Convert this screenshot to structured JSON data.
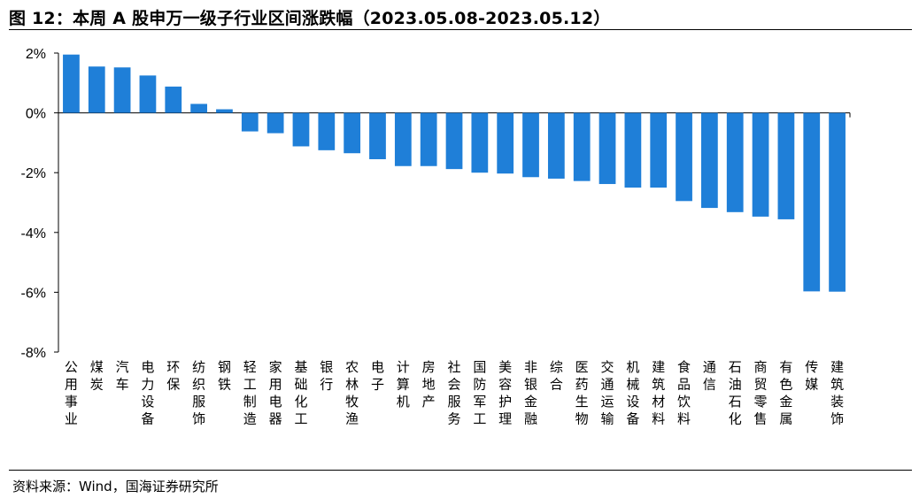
{
  "header": {
    "title": "图 12：本周 A 股申万一级子行业区间涨跌幅（2023.05.08-2023.05.12）"
  },
  "footer": {
    "source": "资料来源：Wind，国海证券研究所"
  },
  "colors": {
    "bar": "#1f7fd8",
    "axis": "#000000"
  },
  "chart_data": {
    "type": "bar",
    "title": "图 12：本周 A 股申万一级子行业区间涨跌幅（2023.05.08-2023.05.12）",
    "xlabel": "",
    "ylabel": "",
    "ylim": [
      -8,
      2
    ],
    "yticks": [
      2,
      0,
      -2,
      -4,
      -6,
      -8
    ],
    "ytick_labels": [
      "2%",
      "0%",
      "-2%",
      "-4%",
      "-6%",
      "-8%"
    ],
    "grid": false,
    "legend": "none",
    "categories": [
      "公用事业",
      "煤炭",
      "汽车",
      "电力设备",
      "环保",
      "纺织服饰",
      "钢铁",
      "轻工制造",
      "家用电器",
      "基础化工",
      "银行",
      "农林牧渔",
      "电子",
      "计算机",
      "房地产",
      "社会服务",
      "国防军工",
      "美容护理",
      "非银金融",
      "综合",
      "医药生物",
      "交通运输",
      "机械设备",
      "建筑材料",
      "食品饮料",
      "通信",
      "石油石化",
      "商贸零售",
      "有色金属",
      "传媒",
      "建筑装饰"
    ],
    "values": [
      1.95,
      1.55,
      1.52,
      1.25,
      0.88,
      0.3,
      0.12,
      -0.62,
      -0.68,
      -1.12,
      -1.25,
      -1.35,
      -1.55,
      -1.78,
      -1.78,
      -1.88,
      -2.0,
      -2.03,
      -2.15,
      -2.2,
      -2.28,
      -2.38,
      -2.5,
      -2.5,
      -2.95,
      -3.18,
      -3.32,
      -3.47,
      -3.56,
      -5.97,
      -5.98
    ]
  }
}
